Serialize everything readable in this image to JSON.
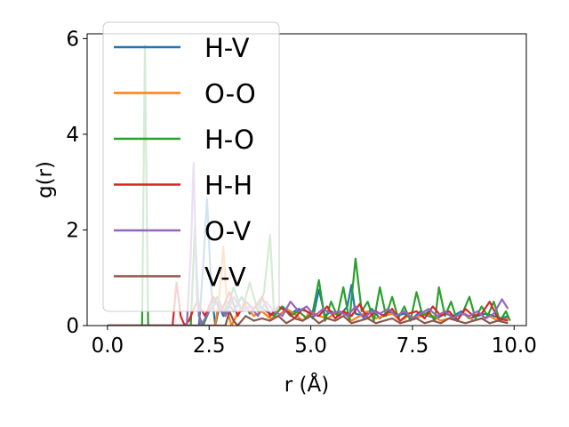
{
  "chart_data": {
    "type": "line",
    "title": "",
    "xlabel": "r (Å)",
    "ylabel": "g(r)",
    "xlim": [
      -0.5,
      10.3
    ],
    "ylim": [
      0,
      6.1
    ],
    "xticks": [
      0.0,
      2.5,
      5.0,
      7.5,
      10.0
    ],
    "xtick_labels": [
      "0.0",
      "2.5",
      "5.0",
      "7.5",
      "10.0"
    ],
    "yticks": [
      0,
      2,
      4,
      6
    ],
    "ytick_labels": [
      "0",
      "2",
      "4",
      "6"
    ],
    "grid": false,
    "legend": {
      "location": "upper-left"
    },
    "series": [
      {
        "name": "H-V",
        "color": "#1f77b4",
        "x": [
          0,
          2.25,
          2.35,
          2.45,
          2.55,
          2.65,
          2.75,
          2.85,
          2.95,
          3.1,
          3.3,
          3.5,
          3.7,
          3.9,
          4.1,
          4.3,
          4.5,
          4.7,
          4.9,
          5.05,
          5.2,
          5.35,
          5.5,
          5.7,
          5.9,
          6.0,
          6.1,
          6.3,
          6.5,
          6.7,
          6.9,
          7.1,
          7.3,
          7.5,
          7.7,
          7.9,
          8.1,
          8.3,
          8.5,
          8.7,
          8.9,
          9.1,
          9.3,
          9.5,
          9.7,
          9.85
        ],
        "y": [
          0,
          0,
          1.2,
          2.65,
          0.8,
          0,
          0.4,
          0.2,
          0.5,
          0.3,
          0.6,
          0.25,
          0.45,
          0.3,
          0.2,
          0.4,
          0.25,
          0.35,
          0.3,
          0.15,
          0.75,
          0.2,
          0.3,
          0.2,
          0.4,
          0.85,
          0.25,
          0.2,
          0.35,
          0.15,
          0.3,
          0.2,
          0.25,
          0.15,
          0.3,
          0.2,
          0.15,
          0.25,
          0.2,
          0.3,
          0.15,
          0.2,
          0.25,
          0.2,
          0.15,
          0.2
        ]
      },
      {
        "name": "O-O",
        "color": "#ff7f0e",
        "x": [
          0,
          2.65,
          2.75,
          2.85,
          2.95,
          3.05,
          3.2,
          3.4,
          3.6,
          3.8,
          4.0,
          4.2,
          4.4,
          4.6,
          4.8,
          5.0,
          5.2,
          5.4,
          5.6,
          5.8,
          6.0,
          6.2,
          6.4,
          6.6,
          6.8,
          7.0,
          7.2,
          7.4,
          7.6,
          7.8,
          8.0,
          8.2,
          8.4,
          8.6,
          8.8,
          9.0,
          9.2,
          9.4,
          9.6,
          9.85
        ],
        "y": [
          0,
          0,
          0.6,
          1.65,
          0.3,
          0,
          0.25,
          0.4,
          0.2,
          0.3,
          0.15,
          0.2,
          0.35,
          0.25,
          0.1,
          0.3,
          0.2,
          0.15,
          0.25,
          0.3,
          0.1,
          0.2,
          0.3,
          0.15,
          0.2,
          0.25,
          0.1,
          0.2,
          0.15,
          0.25,
          0.2,
          0.1,
          0.15,
          0.2,
          0.25,
          0.1,
          0.15,
          0.2,
          0.1,
          0.15
        ]
      },
      {
        "name": "H-O",
        "color": "#2ca02c",
        "x": [
          0,
          0.75,
          0.85,
          0.92,
          1.0,
          1.1,
          2.05,
          2.15,
          2.25,
          2.35,
          2.5,
          2.7,
          2.9,
          3.1,
          3.3,
          3.5,
          3.7,
          3.85,
          4.0,
          4.1,
          4.3,
          4.5,
          4.7,
          4.9,
          5.05,
          5.2,
          5.35,
          5.5,
          5.65,
          5.8,
          5.95,
          6.1,
          6.25,
          6.4,
          6.55,
          6.7,
          6.85,
          7.0,
          7.15,
          7.3,
          7.45,
          7.6,
          7.75,
          7.9,
          8.05,
          8.15,
          8.3,
          8.45,
          8.6,
          8.75,
          8.9,
          9.05,
          9.2,
          9.35,
          9.5,
          9.65,
          9.8,
          9.9
        ],
        "y": [
          0,
          0,
          0,
          5.85,
          0,
          0,
          0,
          2.05,
          0.2,
          0,
          0.3,
          0.6,
          0.2,
          0.8,
          0.3,
          0.9,
          0.3,
          0.7,
          1.9,
          0.2,
          0.4,
          0.2,
          0.3,
          0.15,
          0.3,
          0.95,
          0.1,
          0.5,
          0.2,
          0.8,
          0.1,
          1.4,
          0.3,
          0.5,
          0.1,
          0.8,
          0.2,
          0.6,
          0.15,
          0.4,
          0.1,
          0.7,
          0.2,
          0.3,
          0.1,
          0.8,
          0.2,
          0.5,
          0.1,
          0.3,
          0.6,
          0.15,
          0.4,
          0.2,
          0.5,
          0.1,
          0.3,
          0.1
        ]
      },
      {
        "name": "H-H",
        "color": "#d62728",
        "x": [
          0,
          1.6,
          1.7,
          1.8,
          1.9,
          2.0,
          2.2,
          2.4,
          2.6,
          2.8,
          3.0,
          3.2,
          3.4,
          3.6,
          3.8,
          4.0,
          4.2,
          4.4,
          4.6,
          4.8,
          5.0,
          5.2,
          5.4,
          5.6,
          5.8,
          6.0,
          6.2,
          6.4,
          6.6,
          6.8,
          7.0,
          7.2,
          7.4,
          7.6,
          7.8,
          8.0,
          8.2,
          8.4,
          8.6,
          8.8,
          9.0,
          9.2,
          9.4,
          9.6,
          9.85
        ],
        "y": [
          0,
          0,
          0.9,
          0.2,
          0,
          0.1,
          0.5,
          0.2,
          0.6,
          0.3,
          0.7,
          0.2,
          0.5,
          0.35,
          0.6,
          0.2,
          0.4,
          0.3,
          0.15,
          0.35,
          0.25,
          0.2,
          0.4,
          0.15,
          0.3,
          0.2,
          0.45,
          0.15,
          0.3,
          0.2,
          0.35,
          0.1,
          0.25,
          0.3,
          0.15,
          0.4,
          0.2,
          0.3,
          0.1,
          0.35,
          0.2,
          0.25,
          0.5,
          0.15,
          0.1
        ]
      },
      {
        "name": "O-V",
        "color": "#9467bd",
        "x": [
          0,
          1.95,
          2.05,
          2.12,
          2.2,
          2.3,
          2.5,
          2.7,
          2.9,
          3.1,
          3.3,
          3.5,
          3.7,
          3.9,
          4.1,
          4.3,
          4.5,
          4.7,
          4.9,
          5.1,
          5.3,
          5.5,
          5.7,
          5.9,
          6.1,
          6.3,
          6.5,
          6.7,
          6.9,
          7.1,
          7.3,
          7.5,
          7.7,
          7.9,
          8.1,
          8.3,
          8.5,
          8.7,
          8.9,
          9.1,
          9.3,
          9.5,
          9.7,
          9.85
        ],
        "y": [
          0,
          0,
          1.5,
          3.4,
          0.5,
          0,
          0.3,
          0.5,
          0.2,
          0.6,
          0.3,
          0.4,
          0.2,
          0.5,
          0.3,
          0.2,
          0.5,
          0.3,
          0.4,
          0.2,
          0.35,
          0.25,
          0.3,
          0.2,
          0.4,
          0.15,
          0.3,
          0.25,
          0.35,
          0.2,
          0.3,
          0.15,
          0.25,
          0.35,
          0.2,
          0.3,
          0.15,
          0.25,
          0.2,
          0.3,
          0.15,
          0.25,
          0.55,
          0.35
        ]
      },
      {
        "name": "V-V",
        "color": "#8c564b",
        "x": [
          0,
          2.9,
          3.0,
          3.1,
          3.2,
          3.4,
          3.6,
          3.8,
          4.0,
          4.2,
          4.4,
          4.6,
          4.8,
          5.0,
          5.2,
          5.4,
          5.6,
          5.8,
          6.0,
          6.2,
          6.4,
          6.6,
          6.8,
          7.0,
          7.2,
          7.4,
          7.6,
          7.8,
          8.0,
          8.2,
          8.4,
          8.6,
          8.8,
          9.0,
          9.2,
          9.4,
          9.6,
          9.85
        ],
        "y": [
          0,
          0,
          0.3,
          0.1,
          0,
          0.2,
          0.1,
          0.15,
          0.1,
          0.2,
          0.05,
          0.15,
          0.1,
          0.2,
          0.05,
          0.15,
          0.1,
          0.2,
          0.05,
          0.1,
          0.15,
          0.05,
          0.1,
          0.15,
          0.05,
          0.1,
          0.15,
          0.05,
          0.1,
          0.05,
          0.15,
          0.1,
          0.05,
          0.1,
          0.15,
          0.05,
          0.1,
          0.05
        ]
      }
    ]
  }
}
